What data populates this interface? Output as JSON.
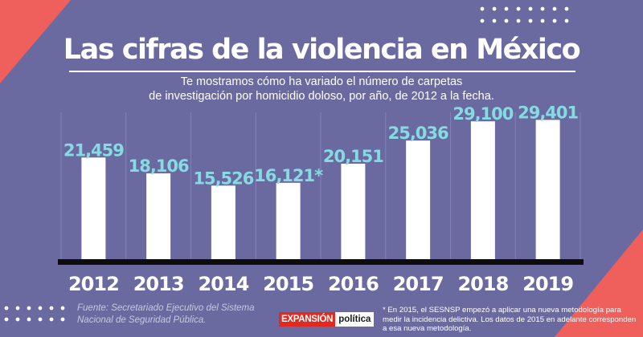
{
  "header": {
    "title": "Las cifras de la violencia en México",
    "subtitle_line1": "Te mostramos cómo ha variado el número de carpetas",
    "subtitle_line2": "de investigación por homicidio doloso, por año, de 2012 a la fecha."
  },
  "footer": {
    "source_line1": "Fuente: Secretariado Ejecutivo del Sistema",
    "source_line2": "Nacional de Seguridad Pública.",
    "brand_primary": "EXPANSIÓN",
    "brand_secondary": "política",
    "note": "* En 2015, el SESNSP empezó a aplicar una nueva metodología para medir la incidencia delictiva. Los datos de 2015 en adelante corresponden a esa nueva metodología."
  },
  "colors": {
    "background": "#6a6aa1",
    "bar": "#ffffff",
    "value_label": "#86dbe2",
    "year_label": "#ffffff",
    "baseline": "#0d0d0d",
    "accent_coral": "#ef5f5c",
    "gridline": "#8181b6"
  },
  "chart_data": {
    "type": "bar",
    "title": "Las cifras de la violencia en México",
    "categories": [
      "2012",
      "2013",
      "2014",
      "2015",
      "2016",
      "2017",
      "2018",
      "2019"
    ],
    "values": [
      21459,
      18106,
      15526,
      16121,
      20151,
      25036,
      29100,
      29401
    ],
    "value_labels": [
      "21,459",
      "18,106",
      "15,526",
      "16,121*",
      "20,151",
      "25,036",
      "29,100",
      "29,401"
    ],
    "ylim": [
      0,
      31000
    ],
    "grid": true,
    "legend": "none"
  }
}
